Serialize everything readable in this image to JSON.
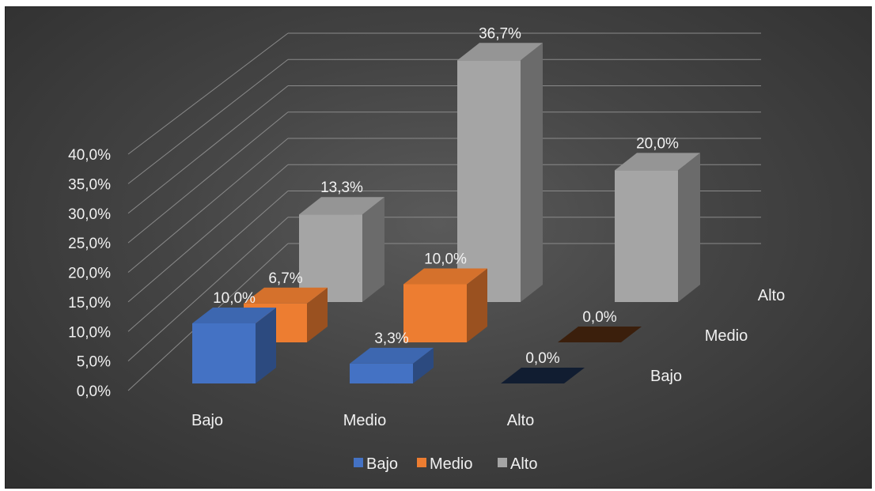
{
  "chart_data": {
    "type": "bar",
    "variant": "3d-column",
    "categories": [
      "Bajo",
      "Medio",
      "Alto"
    ],
    "series": [
      {
        "name": "Bajo",
        "values": [
          10.0,
          3.3,
          0.0
        ],
        "labels": [
          "10,0%",
          "3,3%",
          "0,0%"
        ],
        "color": "#4472C4"
      },
      {
        "name": "Medio",
        "values": [
          6.7,
          10.0,
          0.0
        ],
        "labels": [
          "6,7%",
          "10,0%",
          "0,0%"
        ],
        "color": "#ED7D31"
      },
      {
        "name": "Alto",
        "values": [
          13.3,
          36.7,
          20.0
        ],
        "labels": [
          "13,3%",
          "36,7%",
          "20,0%"
        ],
        "color": "#A5A5A5"
      }
    ],
    "yticks": [
      "0,0%",
      "5,0%",
      "10,0%",
      "15,0%",
      "20,0%",
      "25,0%",
      "30,0%",
      "35,0%",
      "40,0%"
    ],
    "ylim": [
      0,
      40
    ],
    "depth_labels": [
      "Bajo",
      "Medio",
      "Alto"
    ],
    "legend": {
      "position": "bottom",
      "entries": [
        "Bajo",
        "Medio",
        "Alto"
      ]
    },
    "grid": true,
    "title": "",
    "xlabel": "",
    "ylabel": ""
  }
}
